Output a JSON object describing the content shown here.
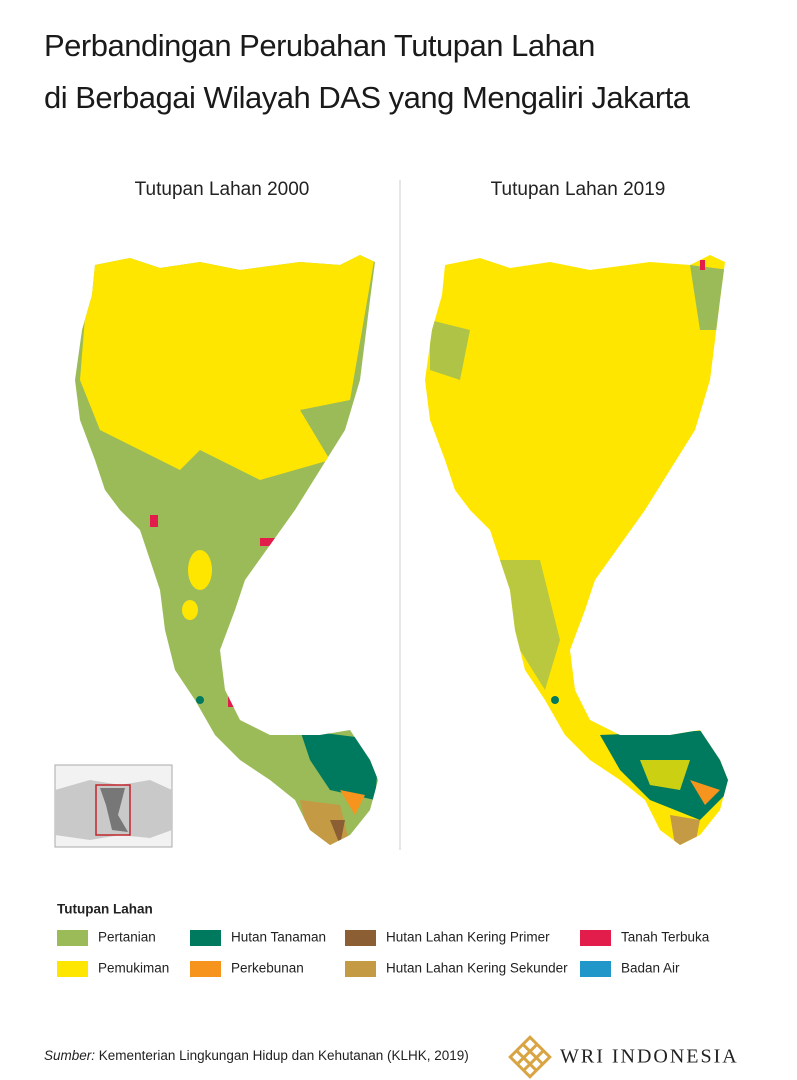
{
  "header": {
    "title_lines": [
      "Perbandingan Perubahan Tutupan Lahan",
      "di Berbagai Wilayah DAS yang Mengaliri Jakarta"
    ]
  },
  "maps": [
    {
      "title": "Tutupan Lahan 2000"
    },
    {
      "title": "Tutupan Lahan 2019"
    }
  ],
  "legend": {
    "title": "Tutupan Lahan",
    "items": [
      {
        "label": "Pertanian",
        "color": "#9bbb59"
      },
      {
        "label": "Pemukiman",
        "color": "#ffe600"
      },
      {
        "label": "Hutan Tanaman",
        "color": "#007a5e"
      },
      {
        "label": "Perkebunan",
        "color": "#f7941d"
      },
      {
        "label": "Hutan Lahan Kering Primer",
        "color": "#8b5e34"
      },
      {
        "label": "Hutan Lahan Kering Sekunder",
        "color": "#c49a45"
      },
      {
        "label": "Tanah Terbuka",
        "color": "#e31d4b"
      },
      {
        "label": "Badan Air",
        "color": "#2196c9"
      }
    ]
  },
  "footer": {
    "source_prefix": "Sumber:",
    "source": "Kementerian Lingkungan Hidup dan Kehutanan (KLHK, 2019)",
    "logo": "WRI INDONESIA"
  }
}
